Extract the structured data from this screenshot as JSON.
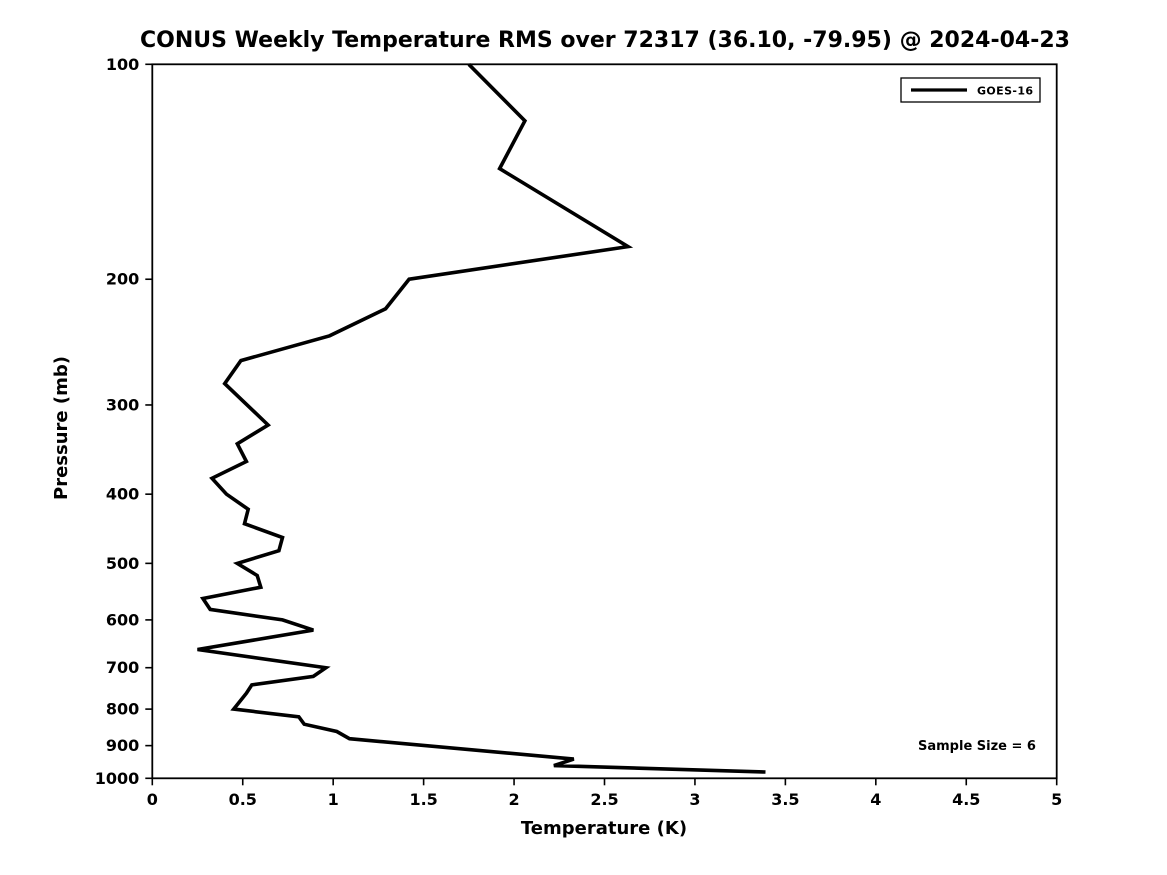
{
  "figure": {
    "title": "CONUS Weekly Temperature RMS over 72317 (36.10, -79.95) @ 2024-04-23",
    "background_color": "#ffffff",
    "axis_color": "#000000"
  },
  "legend": {
    "label": "GOES-16",
    "line_color": "#000000",
    "position": "upper right"
  },
  "annotation": {
    "sample_size": "Sample Size = 6"
  },
  "chart_data": {
    "type": "line",
    "title": "CONUS Weekly Temperature RMS over 72317 (36.10, -79.95) @ 2024-04-23",
    "xlabel": "Temperature (K)",
    "ylabel": "Pressure (mb)",
    "xlim": [
      0,
      5
    ],
    "ylim": [
      100,
      1000
    ],
    "y_scale": "log",
    "y_inverted": true,
    "grid": false,
    "legend_position": "upper right",
    "x_ticks": [
      {
        "v": 0,
        "label": "0"
      },
      {
        "v": 0.5,
        "label": "0.5"
      },
      {
        "v": 1,
        "label": "1"
      },
      {
        "v": 1.5,
        "label": "1.5"
      },
      {
        "v": 2,
        "label": "2"
      },
      {
        "v": 2.5,
        "label": "2.5"
      },
      {
        "v": 3,
        "label": "3"
      },
      {
        "v": 3.5,
        "label": "3.5"
      },
      {
        "v": 4,
        "label": "4"
      },
      {
        "v": 4.5,
        "label": "4.5"
      },
      {
        "v": 5,
        "label": "5"
      }
    ],
    "y_ticks": [
      {
        "v": 100,
        "label": "100"
      },
      {
        "v": 200,
        "label": "200"
      },
      {
        "v": 300,
        "label": "300"
      },
      {
        "v": 400,
        "label": "400"
      },
      {
        "v": 500,
        "label": "500"
      },
      {
        "v": 600,
        "label": "600"
      },
      {
        "v": 700,
        "label": "700"
      },
      {
        "v": 800,
        "label": "800"
      },
      {
        "v": 900,
        "label": "900"
      },
      {
        "v": 1000,
        "label": "1000"
      }
    ],
    "series": [
      {
        "name": "GOES-16",
        "color": "#000000",
        "points_format": [
          "pressure_mb",
          "rms_k"
        ],
        "points": [
          [
            100,
            1.75
          ],
          [
            120,
            2.06
          ],
          [
            140,
            1.92
          ],
          [
            180,
            2.63
          ],
          [
            200,
            1.42
          ],
          [
            220,
            1.29
          ],
          [
            240,
            0.98
          ],
          [
            260,
            0.49
          ],
          [
            280,
            0.4
          ],
          [
            320,
            0.64
          ],
          [
            340,
            0.47
          ],
          [
            360,
            0.52
          ],
          [
            380,
            0.33
          ],
          [
            400,
            0.41
          ],
          [
            420,
            0.53
          ],
          [
            440,
            0.51
          ],
          [
            460,
            0.72
          ],
          [
            480,
            0.7
          ],
          [
            500,
            0.47
          ],
          [
            520,
            0.58
          ],
          [
            540,
            0.6
          ],
          [
            560,
            0.28
          ],
          [
            580,
            0.32
          ],
          [
            600,
            0.72
          ],
          [
            620,
            0.89
          ],
          [
            660,
            0.25
          ],
          [
            700,
            0.96
          ],
          [
            720,
            0.89
          ],
          [
            740,
            0.55
          ],
          [
            760,
            0.52
          ],
          [
            800,
            0.45
          ],
          [
            820,
            0.81
          ],
          [
            840,
            0.84
          ],
          [
            860,
            1.02
          ],
          [
            880,
            1.09
          ],
          [
            940,
            2.33
          ],
          [
            960,
            2.22
          ],
          [
            980,
            3.39
          ]
        ]
      }
    ],
    "annotations": [
      {
        "text": "Sample Size = 6",
        "anchor_x_k": 4.56,
        "anchor_pressure_mb": 900
      }
    ]
  }
}
